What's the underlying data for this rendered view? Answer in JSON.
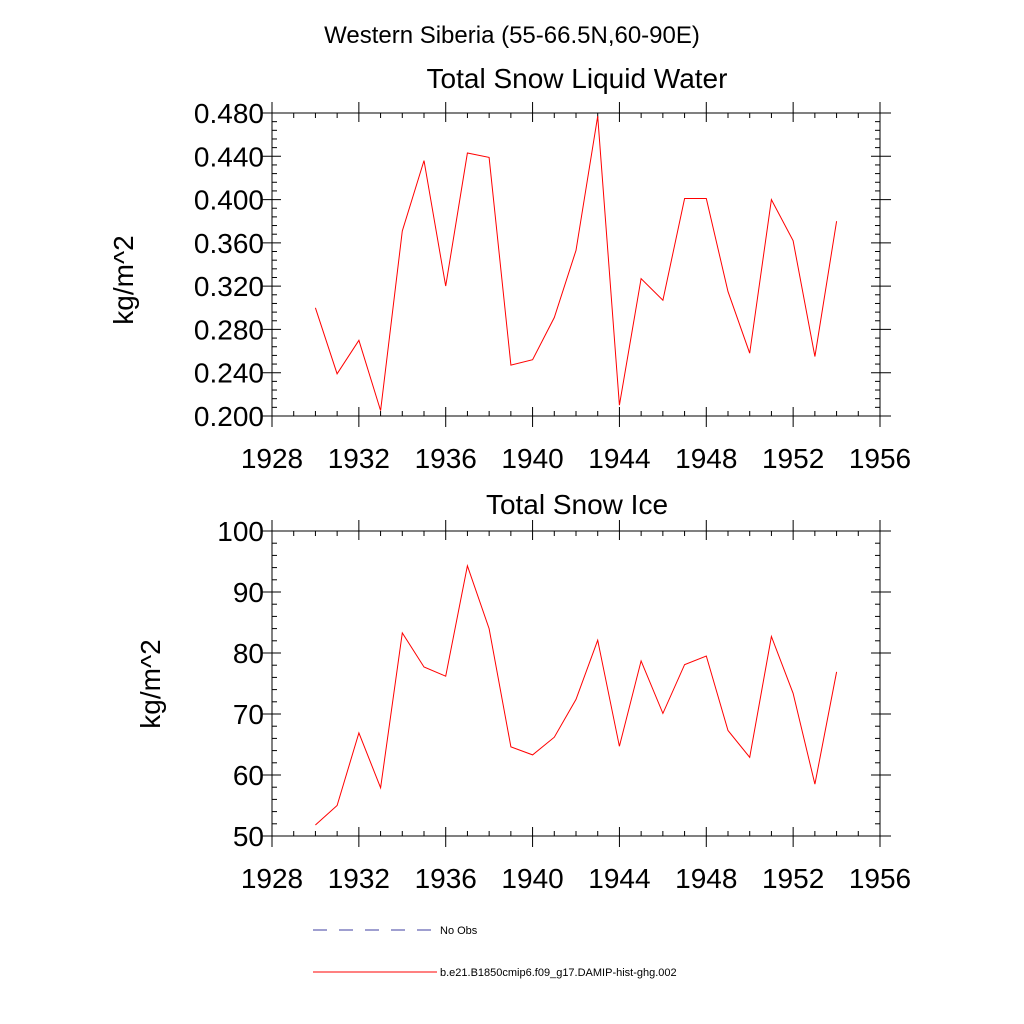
{
  "page_title": "Western Siberia (55-66.5N,60-90E)",
  "colors": {
    "model": "#ff0000",
    "obs": "#3f3fa0",
    "axis": "#000000"
  },
  "legend": {
    "items": [
      {
        "label": "No Obs",
        "style": "dashed",
        "color": "#3f3fa0"
      },
      {
        "label": "b.e21.B1850cmip6.f09_g17.DAMIP-hist-ghg.002",
        "style": "solid",
        "color": "#ff0000"
      }
    ]
  },
  "chart_data": [
    {
      "type": "line",
      "title": "Total Snow Liquid Water",
      "ylabel": "kg/m^2",
      "xlabel": "",
      "xlim": [
        1928,
        1956
      ],
      "ylim": [
        0.2,
        0.48
      ],
      "xticks": [
        1928,
        1932,
        1936,
        1940,
        1944,
        1948,
        1952,
        1956
      ],
      "yticks": [
        "0.200",
        "0.240",
        "0.280",
        "0.320",
        "0.360",
        "0.400",
        "0.440",
        "0.480"
      ],
      "x": [
        1930,
        1931,
        1932,
        1933,
        1934,
        1935,
        1936,
        1937,
        1938,
        1939,
        1940,
        1941,
        1942,
        1943,
        1944,
        1945,
        1946,
        1947,
        1948,
        1949,
        1950,
        1951,
        1952,
        1953,
        1954
      ],
      "series": [
        {
          "name": "b.e21.B1850cmip6.f09_g17.DAMIP-hist-ghg.002",
          "values": [
            0.3,
            0.239,
            0.27,
            0.205,
            0.371,
            0.436,
            0.32,
            0.443,
            0.439,
            0.247,
            0.252,
            0.291,
            0.353,
            0.477,
            0.21,
            0.327,
            0.307,
            0.401,
            0.401,
            0.315,
            0.258,
            0.4,
            0.362,
            0.255,
            0.38
          ]
        }
      ]
    },
    {
      "type": "line",
      "title": "Total Snow Ice",
      "ylabel": "kg/m^2",
      "xlabel": "",
      "xlim": [
        1928,
        1956
      ],
      "ylim": [
        50,
        100
      ],
      "xticks": [
        1928,
        1932,
        1936,
        1940,
        1944,
        1948,
        1952,
        1956
      ],
      "yticks": [
        "50",
        "60",
        "70",
        "80",
        "90",
        "100"
      ],
      "x": [
        1930,
        1931,
        1932,
        1933,
        1934,
        1935,
        1936,
        1937,
        1938,
        1939,
        1940,
        1941,
        1942,
        1943,
        1944,
        1945,
        1946,
        1947,
        1948,
        1949,
        1950,
        1951,
        1952,
        1953,
        1954
      ],
      "series": [
        {
          "name": "b.e21.B1850cmip6.f09_g17.DAMIP-hist-ghg.002",
          "values": [
            51.8,
            55.0,
            66.9,
            57.9,
            83.3,
            77.7,
            76.2,
            94.3,
            84.0,
            64.6,
            63.3,
            66.2,
            72.4,
            82.1,
            64.7,
            78.7,
            70.1,
            78.1,
            79.5,
            67.3,
            62.9,
            82.7,
            73.4,
            58.5,
            76.9
          ]
        }
      ]
    }
  ]
}
